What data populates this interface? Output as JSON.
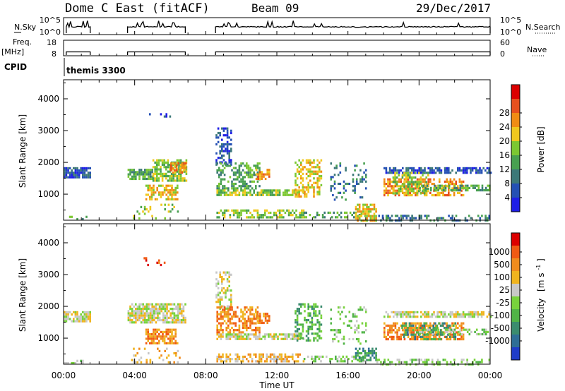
{
  "header": {
    "station": "Dome C East (fitACF)",
    "beam": "Beam 09",
    "date": "29/Dec/2017"
  },
  "strips": {
    "nsky_label": "N.Sky",
    "nsearch_label": "N.Search",
    "nsky_ticks": [
      "10^5",
      "10^0"
    ],
    "nsearch_ticks": [
      "10^5",
      "10^0"
    ],
    "freq_label": "Freq.",
    "freq_unit": "[MHz]",
    "freq_ticks": [
      "18",
      "8"
    ],
    "nave_label": "Nave",
    "nave_ticks": [
      "60",
      "0"
    ],
    "cpid_label": "CPID",
    "cpid_value": "themis 3300"
  },
  "xaxis": {
    "label": "Time UT",
    "ticks": [
      "00:00",
      "04:00",
      "08:00",
      "12:00",
      "16:00",
      "20:00",
      "00:00"
    ],
    "range_hours": [
      0,
      24
    ]
  },
  "panels": {
    "yaxis_label": "Slant Range [km]",
    "yticks": [
      "1000",
      "2000",
      "3000",
      "4000"
    ],
    "yrange_km": [
      180,
      4600
    ]
  },
  "power_scale": {
    "label": "Power [dB]",
    "ticks": [
      "4",
      "8",
      "12",
      "16",
      "20",
      "24",
      "28"
    ],
    "colors": [
      "#1e1ee6",
      "#2450b4",
      "#3c7878",
      "#48a050",
      "#7cc832",
      "#f0c81e",
      "#f08c14",
      "#e6501e",
      "#dc0000"
    ]
  },
  "velocity_scale": {
    "label": "Velocity",
    "unit": "[m s",
    "unit_exp": "-1",
    "unit_close": "]",
    "ticks": [
      "1000",
      "500",
      "100",
      "25",
      "-25",
      "-100",
      "-500",
      "-1000"
    ],
    "colors": [
      "#1e3cc8",
      "#2e6e96",
      "#3a8c6e",
      "#50b446",
      "#78d23c",
      "#c8c8c8",
      "#f0b41e",
      "#f08c1e",
      "#f05a14",
      "#dc0000"
    ]
  },
  "chart_data": {
    "type": "heatmap",
    "operating_periods_hours": [
      [
        0.15,
        1.5
      ],
      [
        3.6,
        6.85
      ],
      [
        8.55,
        24
      ]
    ],
    "nsky_log_level": 2.2,
    "freq_mhz": 10.5,
    "power_blobs": [
      {
        "t0": 0.0,
        "t1": 1.5,
        "r0": 1550,
        "r1": 1850,
        "c": 1,
        "d": 0.85
      },
      {
        "t0": 0.0,
        "t1": 1.5,
        "r0": 200,
        "r1": 320,
        "c": 3,
        "d": 0.4
      },
      {
        "t0": 3.6,
        "t1": 5.0,
        "r0": 1500,
        "r1": 1800,
        "c": 3,
        "d": 0.8
      },
      {
        "t0": 5.0,
        "t1": 6.9,
        "r0": 1400,
        "r1": 2100,
        "c": 4,
        "d": 0.75
      },
      {
        "t0": 6.0,
        "t1": 6.9,
        "r0": 1700,
        "r1": 2000,
        "c": 6,
        "d": 0.6
      },
      {
        "t0": 4.6,
        "t1": 6.4,
        "r0": 850,
        "r1": 1300,
        "c": 5,
        "d": 0.6
      },
      {
        "t0": 3.8,
        "t1": 6.5,
        "r0": 250,
        "r1": 700,
        "c": 4,
        "d": 0.18
      },
      {
        "t0": 4.5,
        "t1": 6.0,
        "r0": 3300,
        "r1": 3550,
        "c": 1,
        "d": 0.15
      },
      {
        "t0": 8.55,
        "t1": 9.4,
        "r0": 1900,
        "r1": 3100,
        "c": 1,
        "d": 0.45
      },
      {
        "t0": 8.6,
        "t1": 11.0,
        "r0": 1200,
        "r1": 2000,
        "c": 3,
        "d": 0.55
      },
      {
        "t0": 8.6,
        "t1": 13.5,
        "r0": 1000,
        "r1": 1150,
        "c": 4,
        "d": 0.75
      },
      {
        "t0": 10.8,
        "t1": 11.6,
        "r0": 1450,
        "r1": 1800,
        "c": 6,
        "d": 0.7
      },
      {
        "t0": 8.6,
        "t1": 13.5,
        "r0": 250,
        "r1": 520,
        "c": 4,
        "d": 0.55
      },
      {
        "t0": 13.0,
        "t1": 14.5,
        "r0": 900,
        "r1": 2100,
        "c": 5,
        "d": 0.45
      },
      {
        "t0": 15.0,
        "t1": 17.0,
        "r0": 800,
        "r1": 2000,
        "c": 2,
        "d": 0.22
      },
      {
        "t0": 13.5,
        "t1": 17.0,
        "r0": 250,
        "r1": 450,
        "c": 3,
        "d": 0.35
      },
      {
        "t0": 16.4,
        "t1": 17.6,
        "r0": 200,
        "r1": 700,
        "c": 5,
        "d": 0.75
      },
      {
        "t0": 18.0,
        "t1": 24.0,
        "r0": 1700,
        "r1": 1850,
        "c": 1,
        "d": 0.7
      },
      {
        "t0": 18.0,
        "t1": 22.5,
        "r0": 950,
        "r1": 1500,
        "c": 6,
        "d": 0.65
      },
      {
        "t0": 18.5,
        "t1": 20.5,
        "r0": 1000,
        "r1": 1700,
        "c": 4,
        "d": 0.55
      },
      {
        "t0": 20.0,
        "t1": 24.0,
        "r0": 1100,
        "r1": 1300,
        "c": 3,
        "d": 0.6
      },
      {
        "t0": 17.6,
        "t1": 24.0,
        "r0": 200,
        "r1": 350,
        "c": 2,
        "d": 0.35
      }
    ],
    "velocity_blobs": [
      {
        "t0": 0.0,
        "t1": 1.5,
        "r0": 1550,
        "r1": 1850,
        "c": 5,
        "d": 0.85
      },
      {
        "t0": 0.0,
        "t1": 1.5,
        "r0": 200,
        "r1": 320,
        "c": 4,
        "d": 0.4
      },
      {
        "t0": 3.6,
        "t1": 6.9,
        "r0": 1500,
        "r1": 2100,
        "c": 5,
        "d": 0.8
      },
      {
        "t0": 4.6,
        "t1": 6.4,
        "r0": 850,
        "r1": 1300,
        "c": 7,
        "d": 0.7
      },
      {
        "t0": 3.8,
        "t1": 6.5,
        "r0": 250,
        "r1": 700,
        "c": 6,
        "d": 0.18
      },
      {
        "t0": 4.5,
        "t1": 6.0,
        "r0": 3300,
        "r1": 3550,
        "c": 8,
        "d": 0.15
      },
      {
        "t0": 8.55,
        "t1": 9.4,
        "r0": 1900,
        "r1": 3100,
        "c": 5,
        "d": 0.45
      },
      {
        "t0": 8.6,
        "t1": 11.0,
        "r0": 1200,
        "r1": 2000,
        "c": 7,
        "d": 0.55
      },
      {
        "t0": 8.6,
        "t1": 13.5,
        "r0": 1000,
        "r1": 1150,
        "c": 5,
        "d": 0.7
      },
      {
        "t0": 10.8,
        "t1": 11.6,
        "r0": 1450,
        "r1": 1800,
        "c": 7,
        "d": 0.7
      },
      {
        "t0": 8.6,
        "t1": 13.5,
        "r0": 250,
        "r1": 520,
        "c": 6,
        "d": 0.6
      },
      {
        "t0": 13.0,
        "t1": 14.5,
        "r0": 900,
        "r1": 2100,
        "c": 3,
        "d": 0.45
      },
      {
        "t0": 15.0,
        "t1": 17.0,
        "r0": 800,
        "r1": 2000,
        "c": 4,
        "d": 0.22
      },
      {
        "t0": 13.5,
        "t1": 17.0,
        "r0": 250,
        "r1": 450,
        "c": 4,
        "d": 0.4
      },
      {
        "t0": 16.4,
        "t1": 17.6,
        "r0": 300,
        "r1": 700,
        "c": 2,
        "d": 0.7
      },
      {
        "t0": 18.0,
        "t1": 24.0,
        "r0": 1700,
        "r1": 1850,
        "c": 5,
        "d": 0.7
      },
      {
        "t0": 18.0,
        "t1": 22.5,
        "r0": 950,
        "r1": 1500,
        "c": 7,
        "d": 0.65
      },
      {
        "t0": 19.0,
        "t1": 22.0,
        "r0": 1000,
        "r1": 1500,
        "c": 2,
        "d": 0.4
      },
      {
        "t0": 20.0,
        "t1": 24.0,
        "r0": 1100,
        "r1": 1300,
        "c": 4,
        "d": 0.5
      },
      {
        "t0": 17.6,
        "t1": 24.0,
        "r0": 200,
        "r1": 350,
        "c": 4,
        "d": 0.4
      }
    ]
  }
}
